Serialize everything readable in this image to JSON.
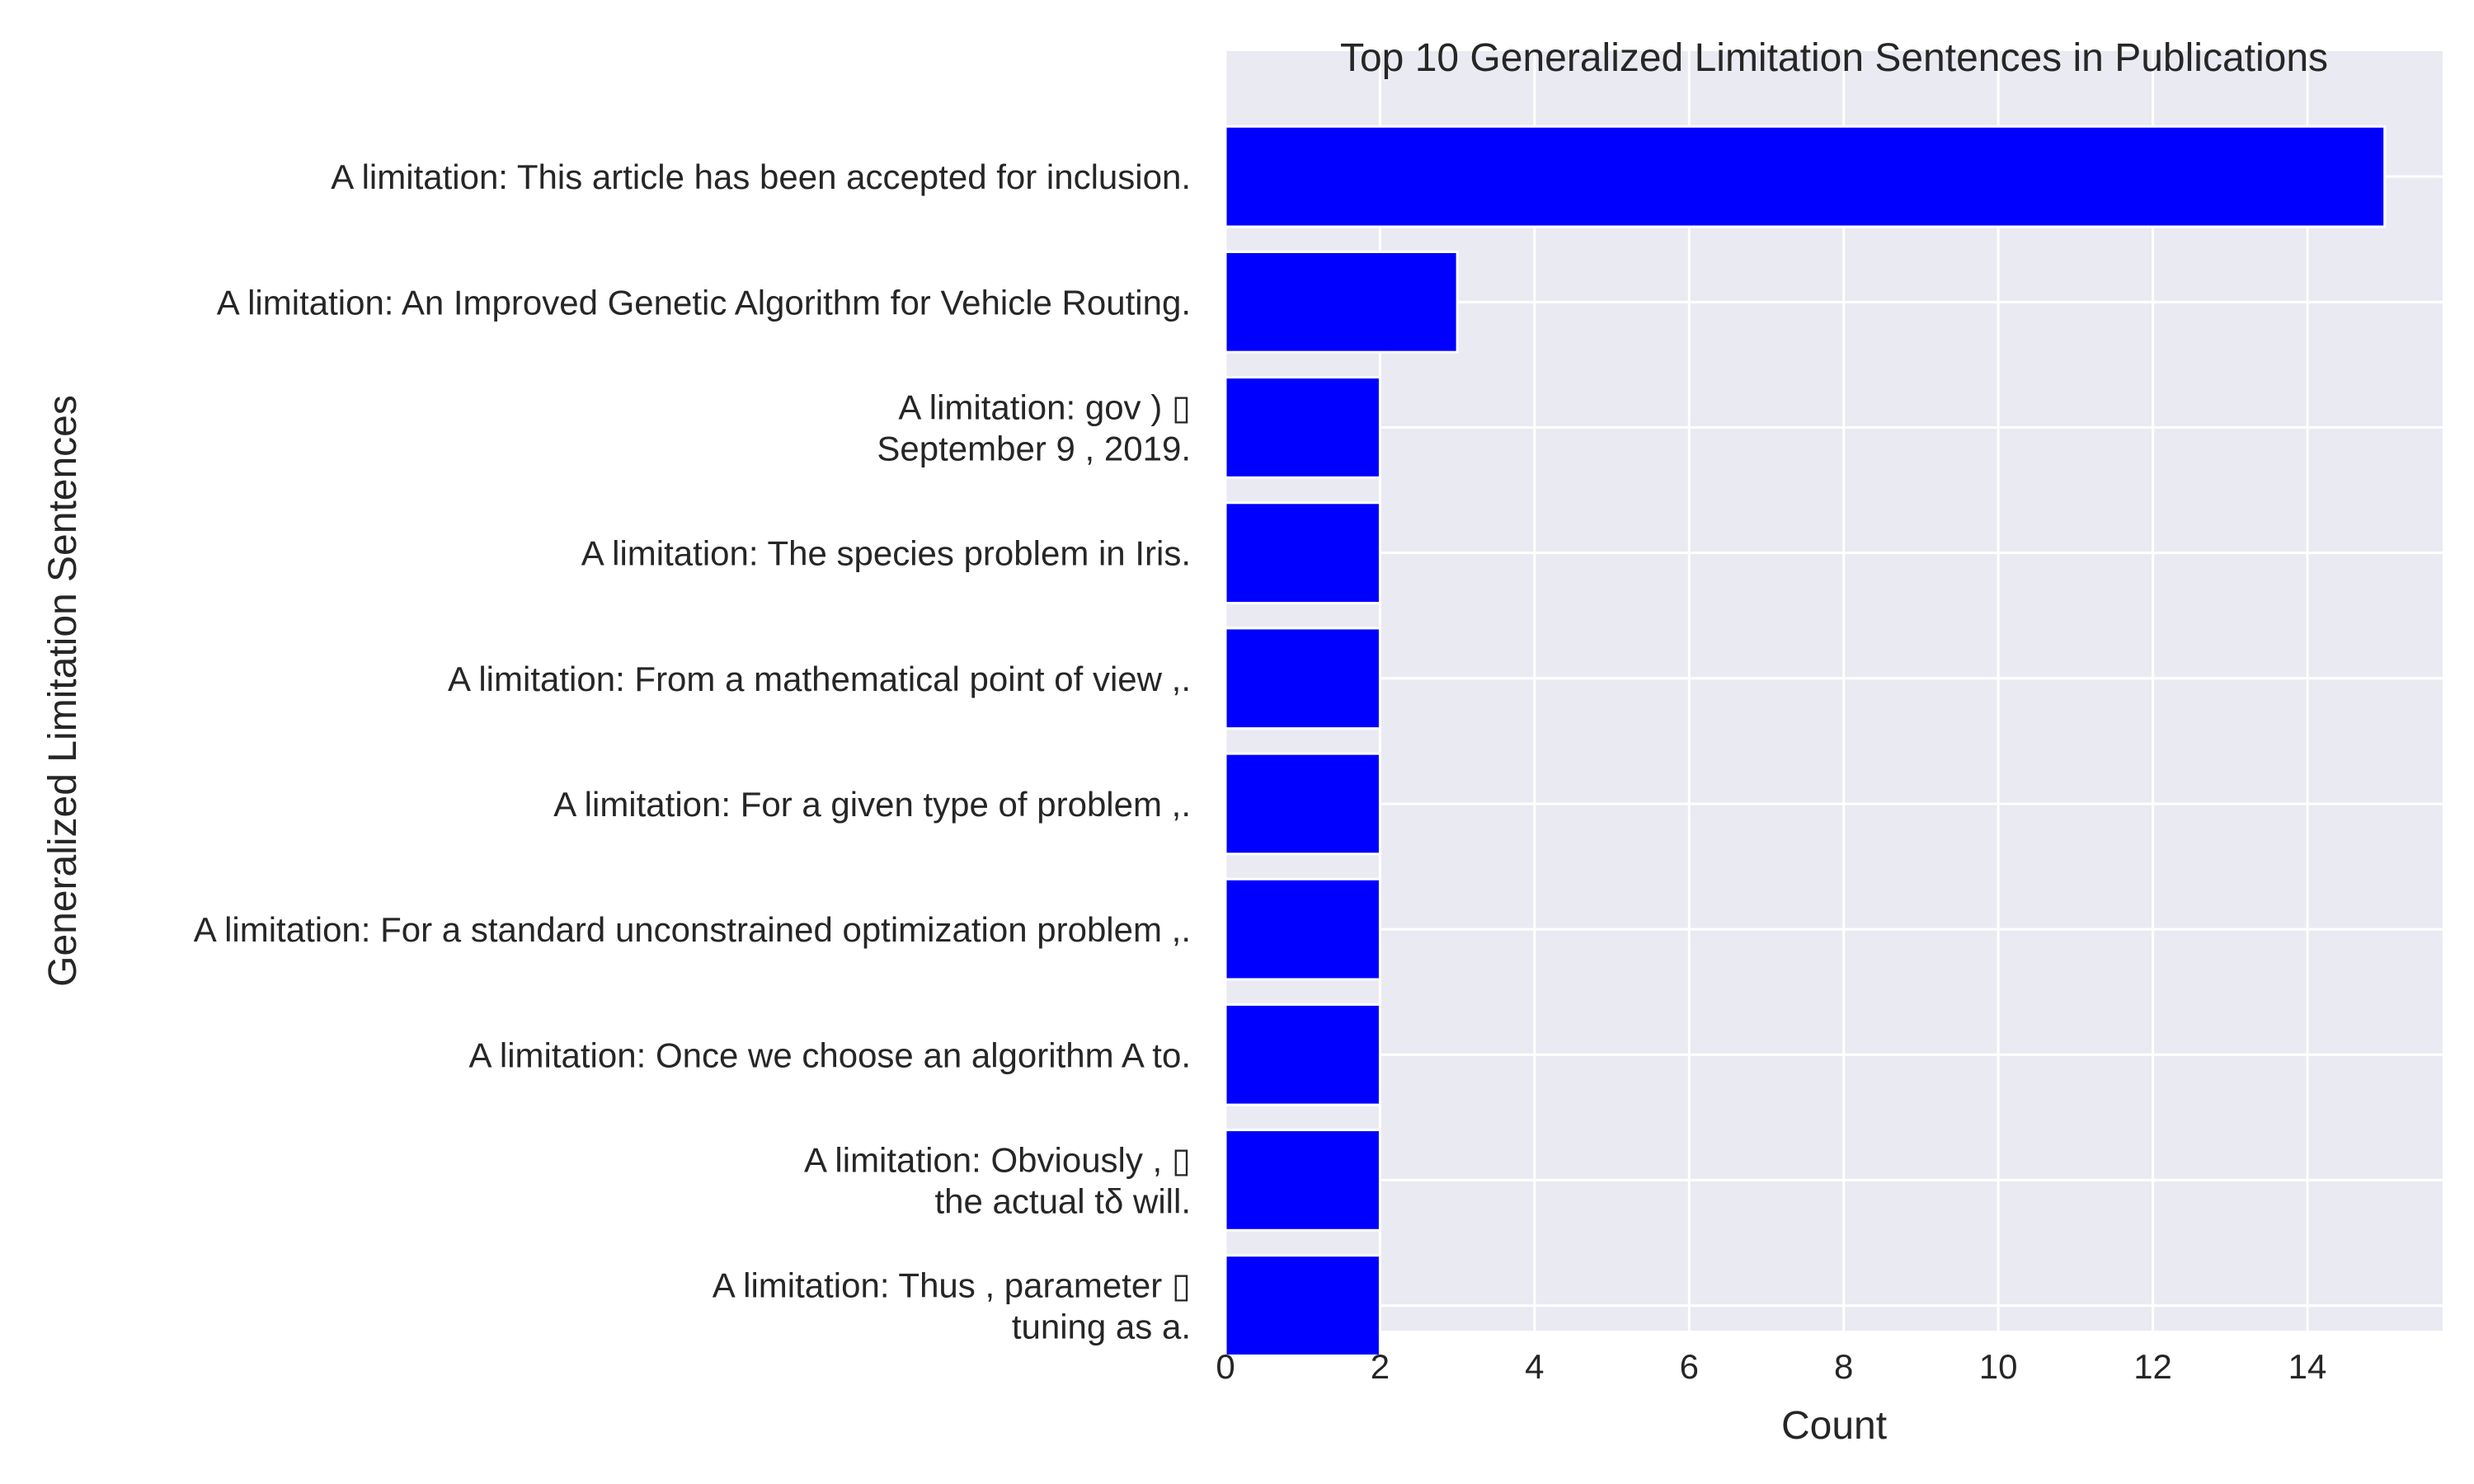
{
  "chart_data": {
    "type": "bar",
    "orientation": "horizontal",
    "title": "Top 10 Generalized Limitation Sentences in Publications",
    "xlabel": "Count",
    "ylabel": "Generalized Limitation Sentences",
    "categories": [
      [
        "A limitation: This article has been accepted for inclusion."
      ],
      [
        "A limitation: An Improved Genetic Algorithm for Vehicle Routing."
      ],
      [
        "A limitation: gov ) ▯",
        "September 9 , 2019."
      ],
      [
        "A limitation: The species problem in Iris."
      ],
      [
        "A limitation: From a mathematical point of view ,."
      ],
      [
        "A limitation: For a given type of problem ,."
      ],
      [
        "A limitation: For a standard unconstrained optimization problem ,."
      ],
      [
        "A limitation: Once we choose an algorithm A to."
      ],
      [
        "A limitation: Obviously , ▯",
        "the actual tδ will."
      ],
      [
        "A limitation: Thus , parameter ▯",
        "tuning as a."
      ]
    ],
    "values": [
      15,
      3,
      2,
      2,
      2,
      2,
      2,
      2,
      2,
      2
    ],
    "xlim": [
      0,
      15.75
    ],
    "xticks": [
      0,
      2,
      4,
      6,
      8,
      10,
      12,
      14
    ],
    "grid": true,
    "colors": {
      "bar": "#0000ff",
      "plot_background": "#eaeaf2",
      "grid": "#ffffff"
    }
  }
}
